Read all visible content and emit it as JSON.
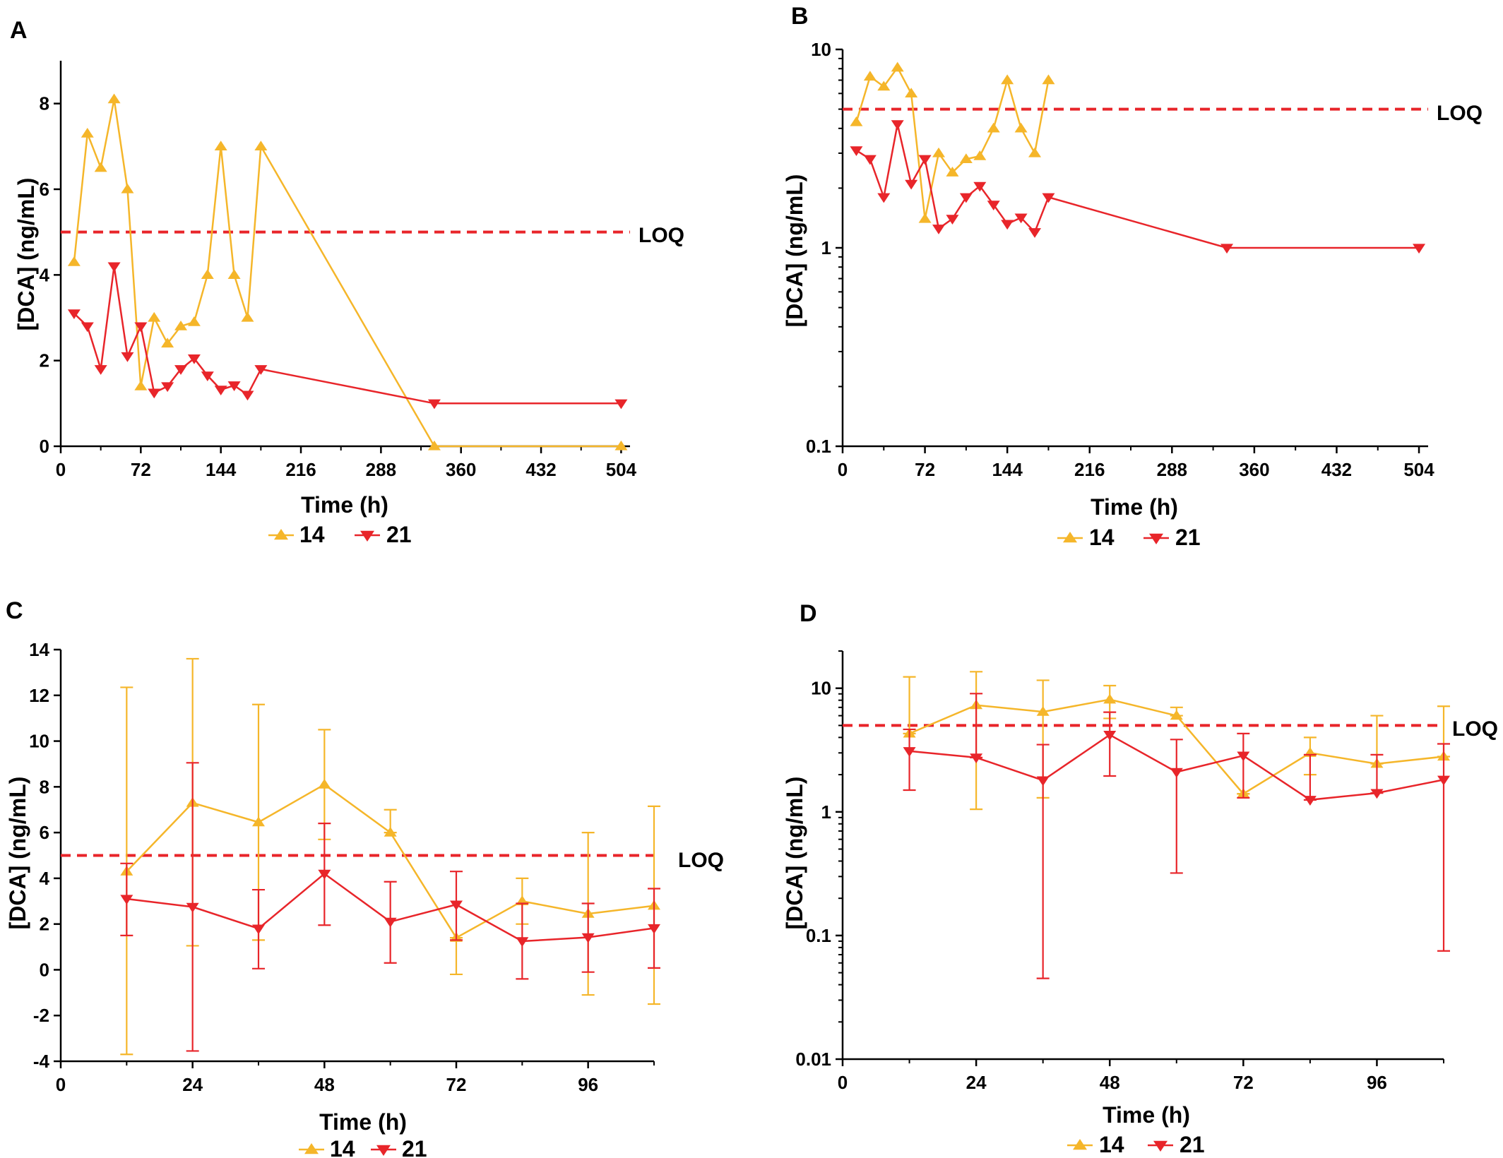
{
  "colors": {
    "series_14": "#f5b62a",
    "series_21": "#e8252a",
    "loq": "#e8252a",
    "axis": "#000000"
  },
  "chart_data": [
    {
      "panel": "A",
      "type": "line",
      "ylabel": "[DCA] (ng/mL)",
      "xlabel": "Time (h)",
      "yscale": "linear",
      "xlim": [
        0,
        512
      ],
      "ylim": [
        0,
        9
      ],
      "xticks": [
        0,
        72,
        144,
        216,
        288,
        360,
        432,
        504
      ],
      "yticks": [
        0,
        2,
        4,
        6,
        8
      ],
      "ytick_labels": [
        "0",
        "2",
        "4",
        "6",
        "8"
      ],
      "loq": {
        "value": 5,
        "label": "LOQ"
      },
      "legend": "bottom-center",
      "series": [
        {
          "name": "14",
          "marker": "triangle-up",
          "x": [
            12,
            24,
            36,
            48,
            60,
            72,
            84,
            96,
            108,
            120,
            132,
            144,
            156,
            168,
            180,
            336,
            504
          ],
          "y": [
            4.3,
            7.3,
            6.5,
            8.1,
            6.0,
            1.4,
            3.0,
            2.4,
            2.8,
            2.9,
            4.0,
            7.0,
            4.0,
            3.0,
            7.0,
            0,
            0
          ]
        },
        {
          "name": "21",
          "marker": "triangle-down",
          "x": [
            12,
            24,
            36,
            48,
            60,
            72,
            84,
            96,
            108,
            120,
            132,
            144,
            156,
            168,
            180,
            336,
            504
          ],
          "y": [
            3.1,
            2.8,
            1.8,
            4.2,
            2.1,
            2.8,
            1.25,
            1.4,
            1.8,
            2.05,
            1.65,
            1.32,
            1.42,
            1.2,
            1.8,
            1.0,
            1.0
          ]
        }
      ]
    },
    {
      "panel": "B",
      "type": "line",
      "ylabel": "[DCA] (ng/mL)",
      "xlabel": "Time (h)",
      "yscale": "log",
      "xlim": [
        0,
        512
      ],
      "ylim": [
        0.1,
        10
      ],
      "xticks": [
        0,
        72,
        144,
        216,
        288,
        360,
        432,
        504
      ],
      "yticks": [
        0.1,
        1,
        10
      ],
      "ytick_labels": [
        "0.1",
        "1",
        "10"
      ],
      "loq": {
        "value": 5,
        "label": "LOQ"
      },
      "legend": "bottom-center",
      "series": [
        {
          "name": "14",
          "marker": "triangle-up",
          "x": [
            12,
            24,
            36,
            48,
            60,
            72,
            84,
            96,
            108,
            120,
            132,
            144,
            156,
            168,
            180
          ],
          "y": [
            4.3,
            7.3,
            6.5,
            8.1,
            6.0,
            1.4,
            3.0,
            2.4,
            2.8,
            2.9,
            4.0,
            7.0,
            4.0,
            3.0,
            7.0
          ]
        },
        {
          "name": "21",
          "marker": "triangle-down",
          "x": [
            12,
            24,
            36,
            48,
            60,
            72,
            84,
            96,
            108,
            120,
            132,
            144,
            156,
            168,
            180,
            336,
            504
          ],
          "y": [
            3.1,
            2.8,
            1.8,
            4.2,
            2.1,
            2.8,
            1.25,
            1.4,
            1.8,
            2.05,
            1.65,
            1.32,
            1.42,
            1.2,
            1.8,
            1.0,
            1.0
          ]
        }
      ]
    },
    {
      "panel": "C",
      "type": "line",
      "ylabel": "[DCA] (ng/mL)",
      "xlabel": "Time (h)",
      "yscale": "linear",
      "xlim": [
        0,
        108
      ],
      "ylim": [
        -4,
        14
      ],
      "xticks": [
        0,
        24,
        48,
        72,
        96
      ],
      "yticks": [
        -4,
        -2,
        0,
        2,
        4,
        6,
        8,
        10,
        12,
        14
      ],
      "ytick_labels": [
        "-4",
        "-2",
        "0",
        "2",
        "4",
        "6",
        "8",
        "10",
        "12",
        "14"
      ],
      "loq": {
        "value": 5,
        "label": "LOQ"
      },
      "legend": "bottom-center",
      "series": [
        {
          "name": "14",
          "marker": "triangle-up",
          "x": [
            12,
            24,
            36,
            48,
            60,
            72,
            84,
            96,
            108
          ],
          "y": [
            4.3,
            7.3,
            6.45,
            8.1,
            6.0,
            1.4,
            3.0,
            2.45,
            2.8
          ],
          "err_low": [
            -3.7,
            1.05,
            1.3,
            5.7,
            6.0,
            -0.2,
            2.0,
            -1.1,
            -1.5
          ],
          "err_high": [
            12.35,
            13.6,
            11.6,
            10.5,
            7.0,
            1.4,
            4.0,
            6.0,
            7.15
          ]
        },
        {
          "name": "21",
          "marker": "triangle-down",
          "x": [
            12,
            24,
            36,
            48,
            60,
            72,
            84,
            96,
            108
          ],
          "y": [
            3.1,
            2.75,
            1.8,
            4.2,
            2.1,
            2.85,
            1.25,
            1.42,
            1.82
          ],
          "err_low": [
            1.5,
            -3.55,
            0.05,
            1.95,
            0.3,
            1.3,
            -0.4,
            -0.1,
            0.08
          ],
          "err_high": [
            4.65,
            9.05,
            3.5,
            6.4,
            3.85,
            4.3,
            2.9,
            2.9,
            3.55
          ]
        }
      ]
    },
    {
      "panel": "D",
      "type": "line",
      "ylabel": "[DCA] (ng/mL)",
      "xlabel": "Time (h)",
      "yscale": "log",
      "xlim": [
        0,
        108
      ],
      "ylim": [
        0.01,
        20
      ],
      "xticks": [
        0,
        24,
        48,
        72,
        96
      ],
      "yticks": [
        0.01,
        0.1,
        1,
        10
      ],
      "ytick_labels": [
        "0.01",
        "0.1",
        "1",
        "10"
      ],
      "loq": {
        "value": 5,
        "label": "LOQ"
      },
      "legend": "bottom-center",
      "series": [
        {
          "name": "14",
          "marker": "triangle-up",
          "x": [
            12,
            24,
            36,
            48,
            60,
            72,
            84,
            96,
            108
          ],
          "y": [
            4.3,
            7.3,
            6.45,
            8.1,
            6.0,
            1.4,
            3.0,
            2.45,
            2.8
          ],
          "err_low": [
            4.3,
            1.05,
            1.3,
            5.7,
            6.0,
            1.4,
            2.0,
            2.45,
            2.8
          ],
          "err_high": [
            12.35,
            13.6,
            11.6,
            10.5,
            7.0,
            1.4,
            4.0,
            6.0,
            7.15
          ]
        },
        {
          "name": "21",
          "marker": "triangle-down",
          "x": [
            12,
            24,
            36,
            48,
            60,
            72,
            84,
            96,
            108
          ],
          "y": [
            3.1,
            2.75,
            1.8,
            4.2,
            2.1,
            2.85,
            1.25,
            1.42,
            1.82
          ],
          "err_low": [
            1.5,
            2.75,
            0.045,
            1.95,
            0.32,
            1.3,
            1.25,
            1.42,
            0.075
          ],
          "err_high": [
            4.65,
            9.05,
            3.5,
            6.4,
            3.85,
            4.3,
            2.9,
            2.9,
            3.55
          ]
        }
      ]
    }
  ]
}
